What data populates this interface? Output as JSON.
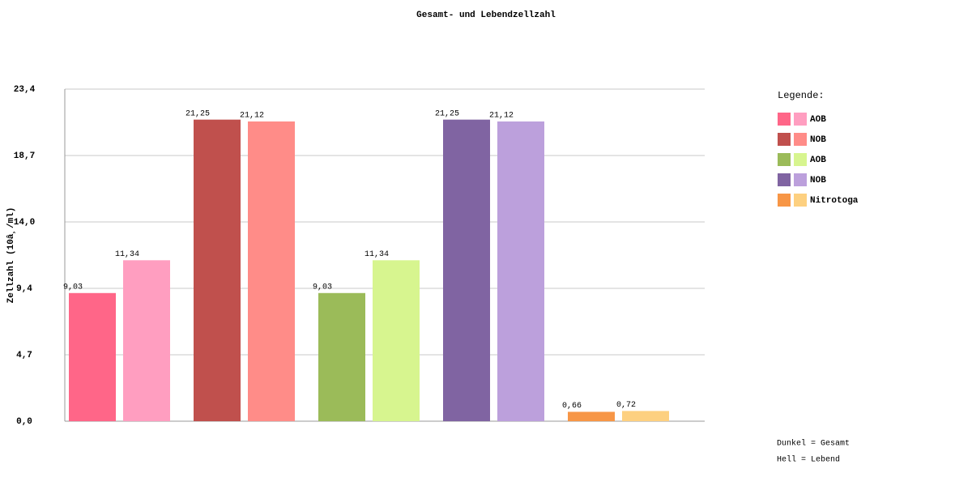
{
  "chart_data": {
    "type": "bar",
    "title": "Gesamt- und Lebendzellzahl",
    "y_label": "Zellzahl (10â¸/ml)",
    "legend_title": "Legende:",
    "notes": [
      "Dunkel = Gesamt",
      "Hell = Lebend"
    ],
    "ylim": [
      0,
      23.4
    ],
    "yticks": [
      {
        "value": 0,
        "label": "0,0"
      },
      {
        "value": 4.68,
        "label": "4,7"
      },
      {
        "value": 9.36,
        "label": "9,4"
      },
      {
        "value": 14.04,
        "label": "14,0"
      },
      {
        "value": 18.72,
        "label": "18,7"
      },
      {
        "value": 23.4,
        "label": "23,4"
      }
    ],
    "grid": true,
    "series": [
      {
        "name": "AOB",
        "colors": [
          "#ff6688",
          "#ff9ec0"
        ],
        "values": [
          9.03,
          11.34
        ],
        "value_labels": [
          "9,03",
          "11,34"
        ]
      },
      {
        "name": "NOB",
        "colors": [
          "#c0504d",
          "#ff8c88"
        ],
        "values": [
          21.25,
          21.12
        ],
        "value_labels": [
          "21,25",
          "21,12"
        ]
      },
      {
        "name": "AOB",
        "colors": [
          "#9bbb59",
          "#d7f58f"
        ],
        "values": [
          9.03,
          11.34
        ],
        "value_labels": [
          "9,03",
          "11,34"
        ]
      },
      {
        "name": "NOB",
        "colors": [
          "#8064a2",
          "#bca0dc"
        ],
        "values": [
          21.25,
          21.12
        ],
        "value_labels": [
          "21,25",
          "21,12"
        ]
      },
      {
        "name": "Nitrotoga",
        "colors": [
          "#f79646",
          "#fdd080"
        ],
        "values": [
          0.66,
          0.72
        ],
        "value_labels": [
          "0,66",
          "0,72"
        ]
      }
    ]
  }
}
